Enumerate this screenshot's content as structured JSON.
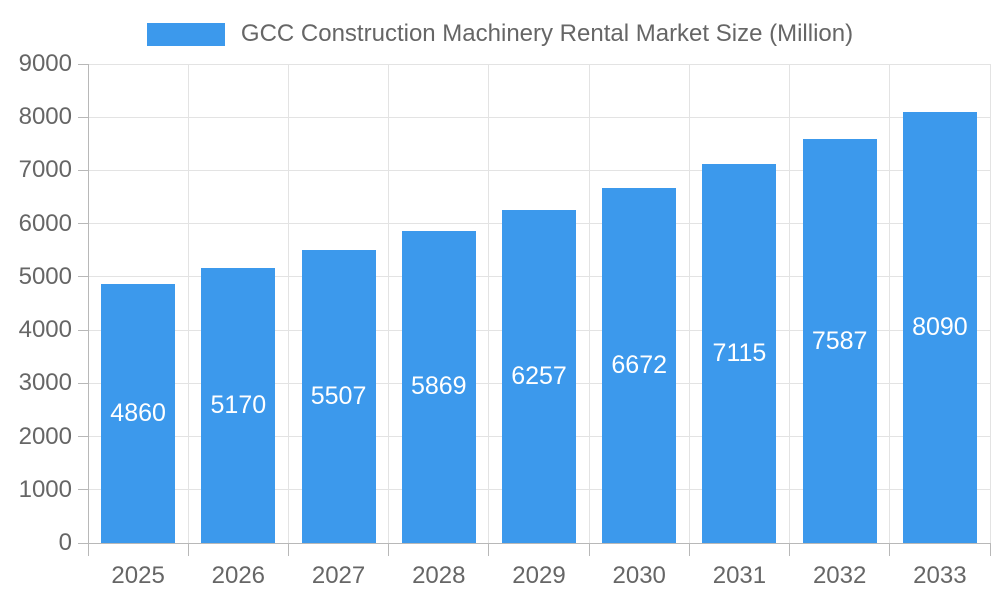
{
  "legend": {
    "label": "GCC Construction Machinery Rental Market Size (Million)"
  },
  "chart_data": {
    "type": "bar",
    "title": "GCC Construction Machinery Rental Market Size (Million)",
    "categories": [
      "2025",
      "2026",
      "2027",
      "2028",
      "2029",
      "2030",
      "2031",
      "2032",
      "2033"
    ],
    "values": [
      4860,
      5170,
      5507,
      5869,
      6257,
      6672,
      7115,
      7587,
      8090
    ],
    "xlabel": "",
    "ylabel": "",
    "ylim": [
      0,
      9000
    ],
    "ytick_step": 1000,
    "grid": true,
    "legend_position": "top",
    "bar_color": "#3c99ec",
    "value_label_color": "#ffffff",
    "axis_text_color": "#666666",
    "gridline_color": "#e3e3e3",
    "axis_line_color": "#b8b8b8"
  }
}
